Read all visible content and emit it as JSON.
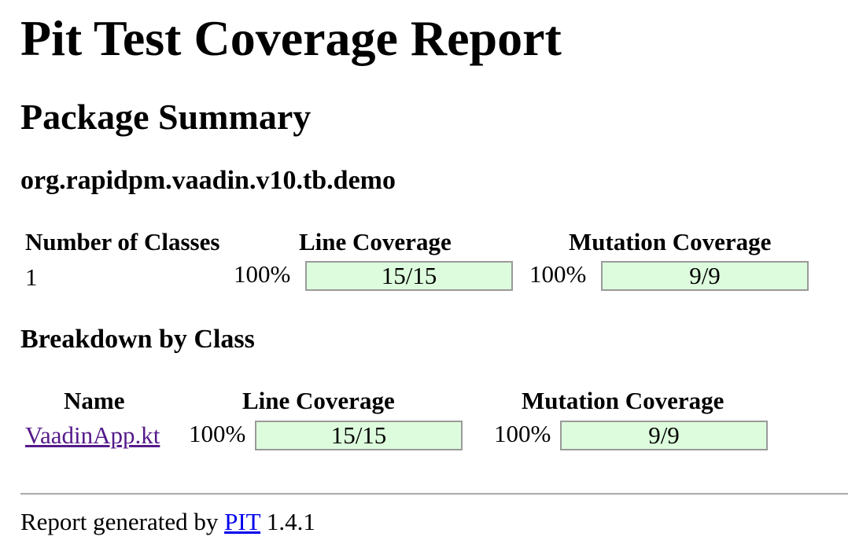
{
  "page": {
    "title": "Pit Test Coverage Report",
    "subtitle": "Package Summary",
    "package_name": "org.rapidpm.vaadin.v10.tb.demo"
  },
  "summary": {
    "headers": {
      "classes": "Number of Classes",
      "line": "Line Coverage",
      "mutation": "Mutation Coverage"
    },
    "classes_count": "1",
    "line_percent": "100%",
    "line_fraction": "15/15",
    "line_ratio": 1.0,
    "mutation_percent": "100%",
    "mutation_fraction": "9/9",
    "mutation_ratio": 1.0
  },
  "breakdown": {
    "title": "Breakdown by Class",
    "headers": {
      "name": "Name",
      "line": "Line Coverage",
      "mutation": "Mutation Coverage"
    },
    "rows": [
      {
        "name": "VaadinApp.kt",
        "line_percent": "100%",
        "line_fraction": "15/15",
        "mutation_percent": "100%",
        "mutation_fraction": "9/9"
      }
    ]
  },
  "footer": {
    "prefix": "Report generated by",
    "link_text": "PIT",
    "version": "1.4.1"
  },
  "colors": {
    "bar_fill": "#ddfcdd",
    "bar_border": "#9a9a9a",
    "visited_link": "#551a8b",
    "link": "#0000ee"
  }
}
